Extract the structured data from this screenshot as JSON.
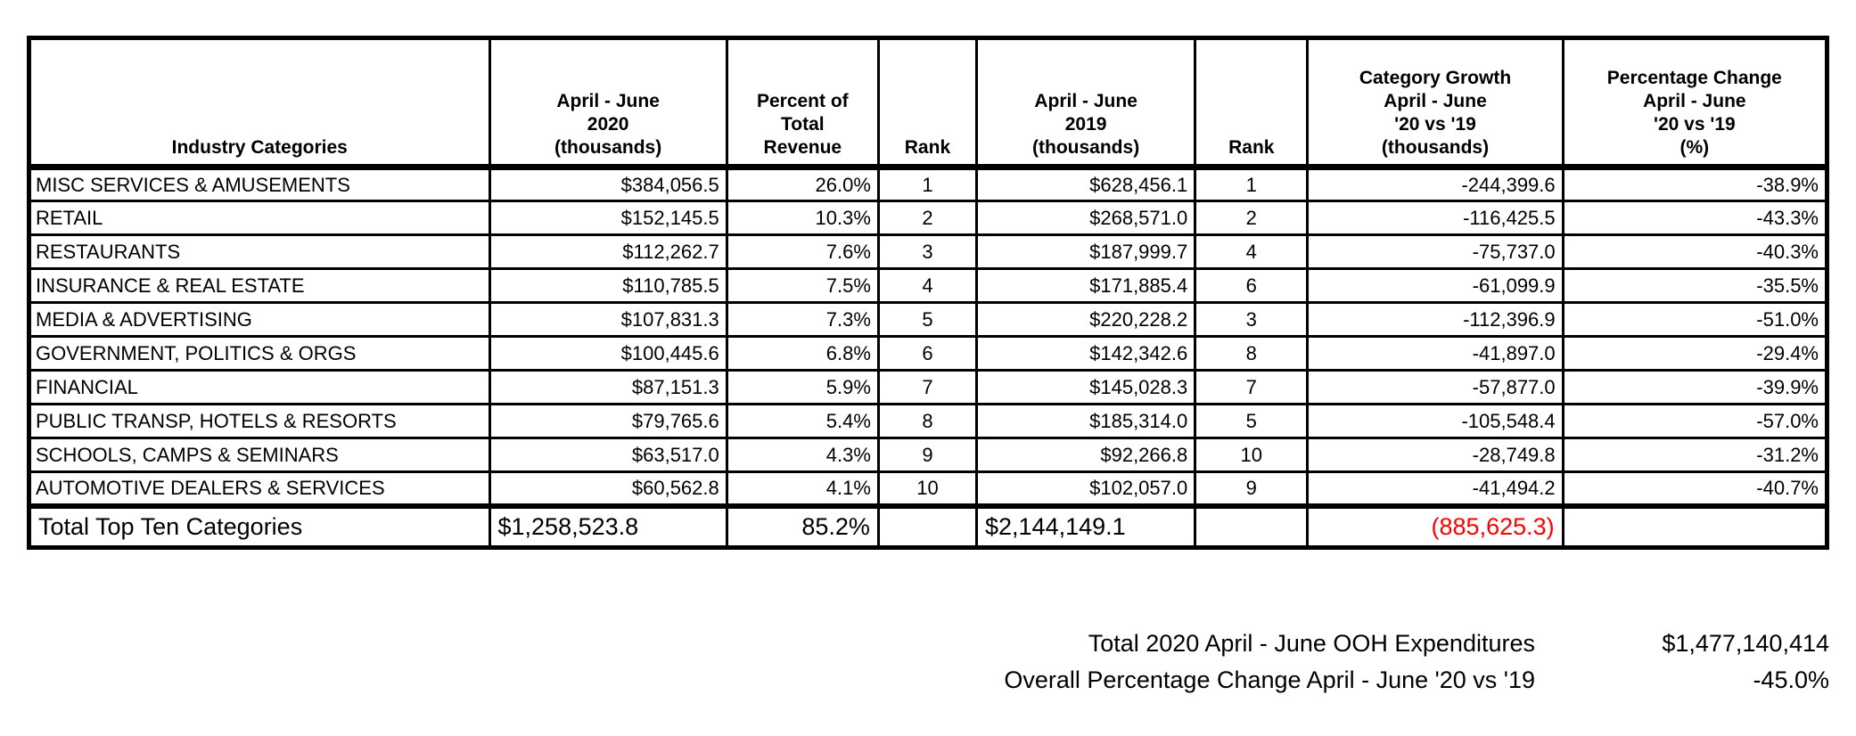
{
  "table": {
    "headers": [
      "Industry Categories",
      "April - June\n2020\n(thousands)",
      "Percent of\nTotal\nRevenue",
      "Rank",
      "April - June\n2019\n(thousands)",
      "Rank",
      "Category Growth\nApril - June\n'20 vs '19\n(thousands)",
      "Percentage Change\nApril - June\n'20 vs '19\n(%)"
    ],
    "rows": [
      [
        "MISC SERVICES & AMUSEMENTS",
        "$384,056.5",
        "26.0%",
        "1",
        "$628,456.1",
        "1",
        "-244,399.6",
        "-38.9%"
      ],
      [
        "RETAIL",
        "$152,145.5",
        "10.3%",
        "2",
        "$268,571.0",
        "2",
        "-116,425.5",
        "-43.3%"
      ],
      [
        "RESTAURANTS",
        "$112,262.7",
        "7.6%",
        "3",
        "$187,999.7",
        "4",
        "-75,737.0",
        "-40.3%"
      ],
      [
        "INSURANCE & REAL ESTATE",
        "$110,785.5",
        "7.5%",
        "4",
        "$171,885.4",
        "6",
        "-61,099.9",
        "-35.5%"
      ],
      [
        "MEDIA & ADVERTISING",
        "$107,831.3",
        "7.3%",
        "5",
        "$220,228.2",
        "3",
        "-112,396.9",
        "-51.0%"
      ],
      [
        "GOVERNMENT, POLITICS & ORGS",
        "$100,445.6",
        "6.8%",
        "6",
        "$142,342.6",
        "8",
        "-41,897.0",
        "-29.4%"
      ],
      [
        "FINANCIAL",
        "$87,151.3",
        "5.9%",
        "7",
        "$145,028.3",
        "7",
        "-57,877.0",
        "-39.9%"
      ],
      [
        "PUBLIC TRANSP, HOTELS & RESORTS",
        "$79,765.6",
        "5.4%",
        "8",
        "$185,314.0",
        "5",
        "-105,548.4",
        "-57.0%"
      ],
      [
        "SCHOOLS, CAMPS & SEMINARS",
        "$63,517.0",
        "4.3%",
        "9",
        "$92,266.8",
        "10",
        "-28,749.8",
        "-31.2%"
      ],
      [
        "AUTOMOTIVE DEALERS & SERVICES",
        "$60,562.8",
        "4.1%",
        "10",
        "$102,057.0",
        "9",
        "-41,494.2",
        "-40.7%"
      ]
    ],
    "total": {
      "label": "Total Top Ten Categories",
      "value_2020": "$1,258,523.8",
      "percent": "85.2%",
      "rank_2020": "",
      "value_2019": "$2,144,149.1",
      "rank_2019": "",
      "growth": "(885,625.3)",
      "pct_change": ""
    },
    "growth_negative_color": "#ff0000"
  },
  "summary": {
    "line1_label": "Total 2020 April - June OOH Expenditures",
    "line1_value": "$1,477,140,414",
    "line2_label": "Overall Percentage Change April - June '20 vs '19",
    "line2_value": "-45.0%"
  }
}
